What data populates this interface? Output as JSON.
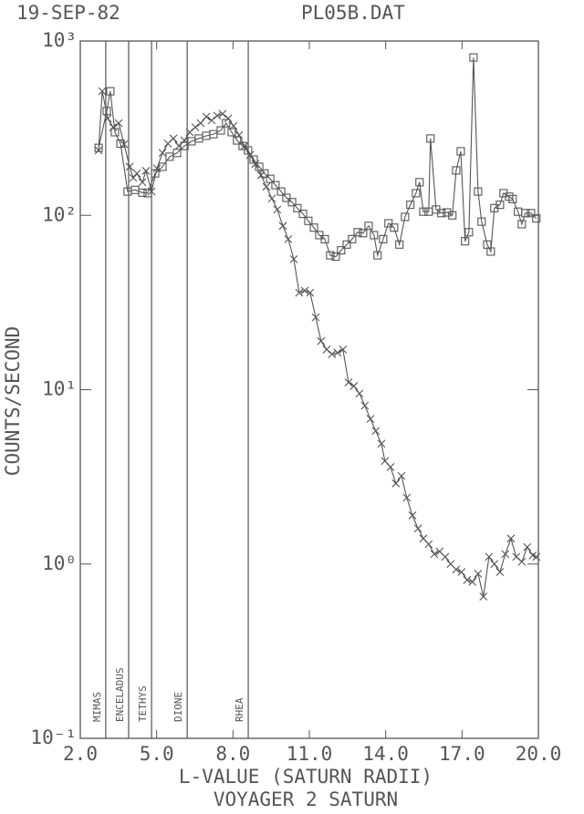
{
  "chart_data": {
    "type": "line",
    "title": "19-SEP-82",
    "subtitle": "PL05B.DAT",
    "x_label": "L-VALUE (SATURN RADII)",
    "x_label_2": "VOYAGER 2 SATURN",
    "y_label": "COUNTS/SECOND",
    "log_y": true,
    "grid": false,
    "xlim": [
      2,
      20
    ],
    "ylim": [
      0.1,
      1000
    ],
    "xticks": [
      {
        "value": 2,
        "label": "2.0"
      },
      {
        "value": 5,
        "label": "5.0"
      },
      {
        "value": 8,
        "label": "8.0"
      },
      {
        "value": 11,
        "label": "11.0"
      },
      {
        "value": 14,
        "label": "14.0"
      },
      {
        "value": 17,
        "label": "17.0"
      },
      {
        "value": 20,
        "label": "20.0"
      }
    ],
    "yticks": [
      {
        "value": 0.1,
        "label": "10⁻¹"
      },
      {
        "value": 1,
        "label": "10⁰"
      },
      {
        "value": 10,
        "label": "10¹"
      },
      {
        "value": 100,
        "label": "10²"
      },
      {
        "value": 1000,
        "label": "10³"
      }
    ],
    "annotations": [
      {
        "label": "MIMAS",
        "x": 3.0
      },
      {
        "label": "ENCELADUS",
        "x": 3.9
      },
      {
        "label": "TETHYS",
        "x": 4.8
      },
      {
        "label": "DIONE",
        "x": 6.2
      },
      {
        "label": "RHEA",
        "x": 8.6
      }
    ],
    "series": [
      {
        "marker": "square",
        "color": "#555555",
        "x": [
          2.72,
          3.04,
          3.18,
          3.36,
          3.58,
          3.86,
          4.15,
          4.44,
          4.65,
          4.94,
          5.23,
          5.51,
          5.8,
          6.09,
          6.37,
          6.66,
          6.95,
          7.23,
          7.52,
          7.73,
          7.95,
          8.16,
          8.38,
          8.59,
          8.81,
          9.03,
          9.24,
          9.46,
          9.67,
          9.89,
          10.1,
          10.32,
          10.53,
          10.75,
          10.96,
          11.18,
          11.39,
          11.61,
          11.82,
          12.04,
          12.25,
          12.47,
          12.68,
          12.9,
          13.11,
          13.33,
          13.54,
          13.68,
          13.9,
          14.11,
          14.33,
          14.54,
          14.76,
          14.97,
          15.19,
          15.33,
          15.48,
          15.69,
          15.76,
          15.98,
          16.19,
          16.41,
          16.62,
          16.77,
          16.95,
          17.12,
          17.27,
          17.45,
          17.63,
          17.77,
          17.99,
          18.13,
          18.27,
          18.49,
          18.63,
          18.85,
          18.99,
          19.2,
          19.35,
          19.49,
          19.71,
          19.92
        ],
        "values": [
          244,
          397,
          515,
          300,
          258,
          137,
          140,
          135,
          134,
          174,
          190,
          217,
          228,
          250,
          266,
          276,
          286,
          292,
          307,
          338,
          300,
          269,
          250,
          236,
          209,
          190,
          174,
          162,
          149,
          137,
          126,
          119,
          110,
          102,
          93,
          85,
          77,
          73,
          59,
          58,
          63,
          68,
          73,
          80,
          79,
          87,
          77,
          59,
          73,
          90,
          85,
          68,
          98,
          115,
          134,
          155,
          105,
          105,
          276,
          108,
          103,
          104,
          100,
          181,
          233,
          71,
          80,
          805,
          137,
          92,
          68,
          62,
          110,
          115,
          134,
          128,
          124,
          105,
          89,
          103,
          103,
          96
        ]
      },
      {
        "marker": "cross",
        "color": "#555555",
        "x": [
          2.72,
          2.86,
          3.08,
          3.29,
          3.51,
          3.72,
          3.94,
          4.08,
          4.22,
          4.44,
          4.58,
          4.8,
          5.01,
          5.23,
          5.44,
          5.66,
          5.87,
          6.09,
          6.3,
          6.52,
          6.73,
          6.95,
          7.16,
          7.38,
          7.59,
          7.81,
          8.02,
          8.24,
          8.45,
          8.67,
          8.88,
          9.1,
          9.31,
          9.53,
          9.74,
          9.96,
          10.17,
          10.39,
          10.6,
          10.82,
          11.03,
          11.25,
          11.46,
          11.68,
          11.89,
          12.11,
          12.32,
          12.54,
          12.75,
          12.97,
          13.18,
          13.4,
          13.61,
          13.83,
          13.97,
          14.19,
          14.4,
          14.62,
          14.83,
          15.05,
          15.27,
          15.48,
          15.69,
          15.91,
          16.12,
          16.34,
          16.55,
          16.77,
          16.98,
          17.2,
          17.41,
          17.63,
          17.84,
          18.06,
          18.27,
          18.49,
          18.7,
          18.92,
          19.13,
          19.35,
          19.56,
          19.78,
          19.92
        ],
        "values": [
          236,
          515,
          360,
          320,
          338,
          256,
          190,
          164,
          174,
          155,
          180,
          137,
          186,
          228,
          258,
          276,
          250,
          269,
          300,
          320,
          338,
          368,
          351,
          373,
          382,
          360,
          326,
          289,
          250,
          222,
          197,
          170,
          146,
          125,
          108,
          87,
          73,
          56,
          36,
          37,
          36,
          26,
          19,
          17,
          16,
          16.3,
          17,
          11,
          10.5,
          9.5,
          8.1,
          6.8,
          5.8,
          4.9,
          3.9,
          3.6,
          2.9,
          3.2,
          2.4,
          1.9,
          1.6,
          1.4,
          1.3,
          1.14,
          1.18,
          1.1,
          1.0,
          0.93,
          0.9,
          0.81,
          0.79,
          0.88,
          0.65,
          1.1,
          1.0,
          0.9,
          1.14,
          1.4,
          1.1,
          1.03,
          1.25,
          1.12,
          1.1
        ]
      }
    ]
  }
}
